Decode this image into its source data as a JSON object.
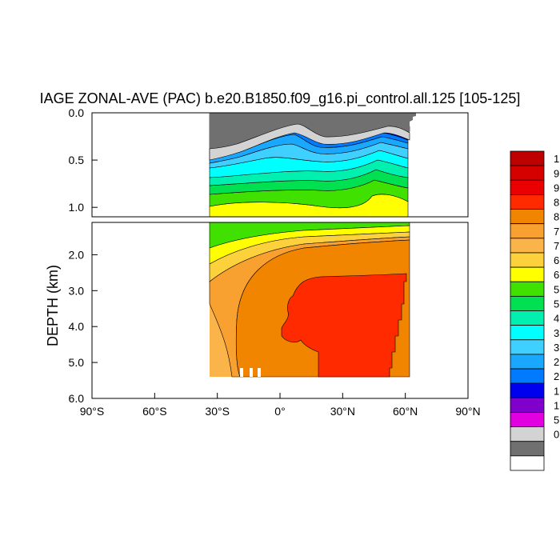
{
  "chart_data": {
    "type": "contour",
    "title": "IAGE ZONAL-AVE (PAC) b.e20.B1850.f09_g16.pi_control.all.125 [105-125]",
    "ylabel": "DEPTH (km)",
    "xlabel": "",
    "x_ticks": [
      "90°S",
      "60°S",
      "30°S",
      "0°",
      "30°N",
      "60°N",
      "90°N"
    ],
    "x_tick_values": [
      -90,
      -60,
      -30,
      0,
      30,
      60,
      90
    ],
    "xlim": [
      -90,
      90
    ],
    "upper_panel": {
      "ylim": [
        0.0,
        1.1
      ],
      "y_ticks": [
        "0.0",
        "0.5",
        "1.0"
      ],
      "y_tick_values": [
        0.0,
        0.5,
        1.0
      ]
    },
    "lower_panel": {
      "ylim": [
        1.1,
        6.0
      ],
      "y_ticks": [
        "2.0",
        "3.0",
        "4.0",
        "5.0",
        "6.0"
      ],
      "y_tick_values": [
        2.0,
        3.0,
        4.0,
        5.0,
        6.0
      ]
    },
    "data_lat_range": [
      -33,
      62
    ],
    "legend_placement": "right",
    "colorbar_labels": [
      "1",
      "9",
      "9",
      "8",
      "8",
      "7",
      "7",
      "6",
      "6",
      "5",
      "5",
      "4",
      "3",
      "3",
      "2",
      "2",
      "1",
      "1",
      "5",
      "0"
    ],
    "colorbar_colors": [
      "#bf0000",
      "#d50000",
      "#ea0000",
      "#ff2a00",
      "#f28500",
      "#f8a030",
      "#fbb44a",
      "#fdd13b",
      "#ffff00",
      "#40e000",
      "#00e050",
      "#00f0b0",
      "#00ffff",
      "#40d0ff",
      "#1aa8ff",
      "#007aff",
      "#0000ee",
      "#8000cc",
      "#e000e0",
      "#d3d3d3",
      "#707070",
      "#ffffff"
    ]
  }
}
